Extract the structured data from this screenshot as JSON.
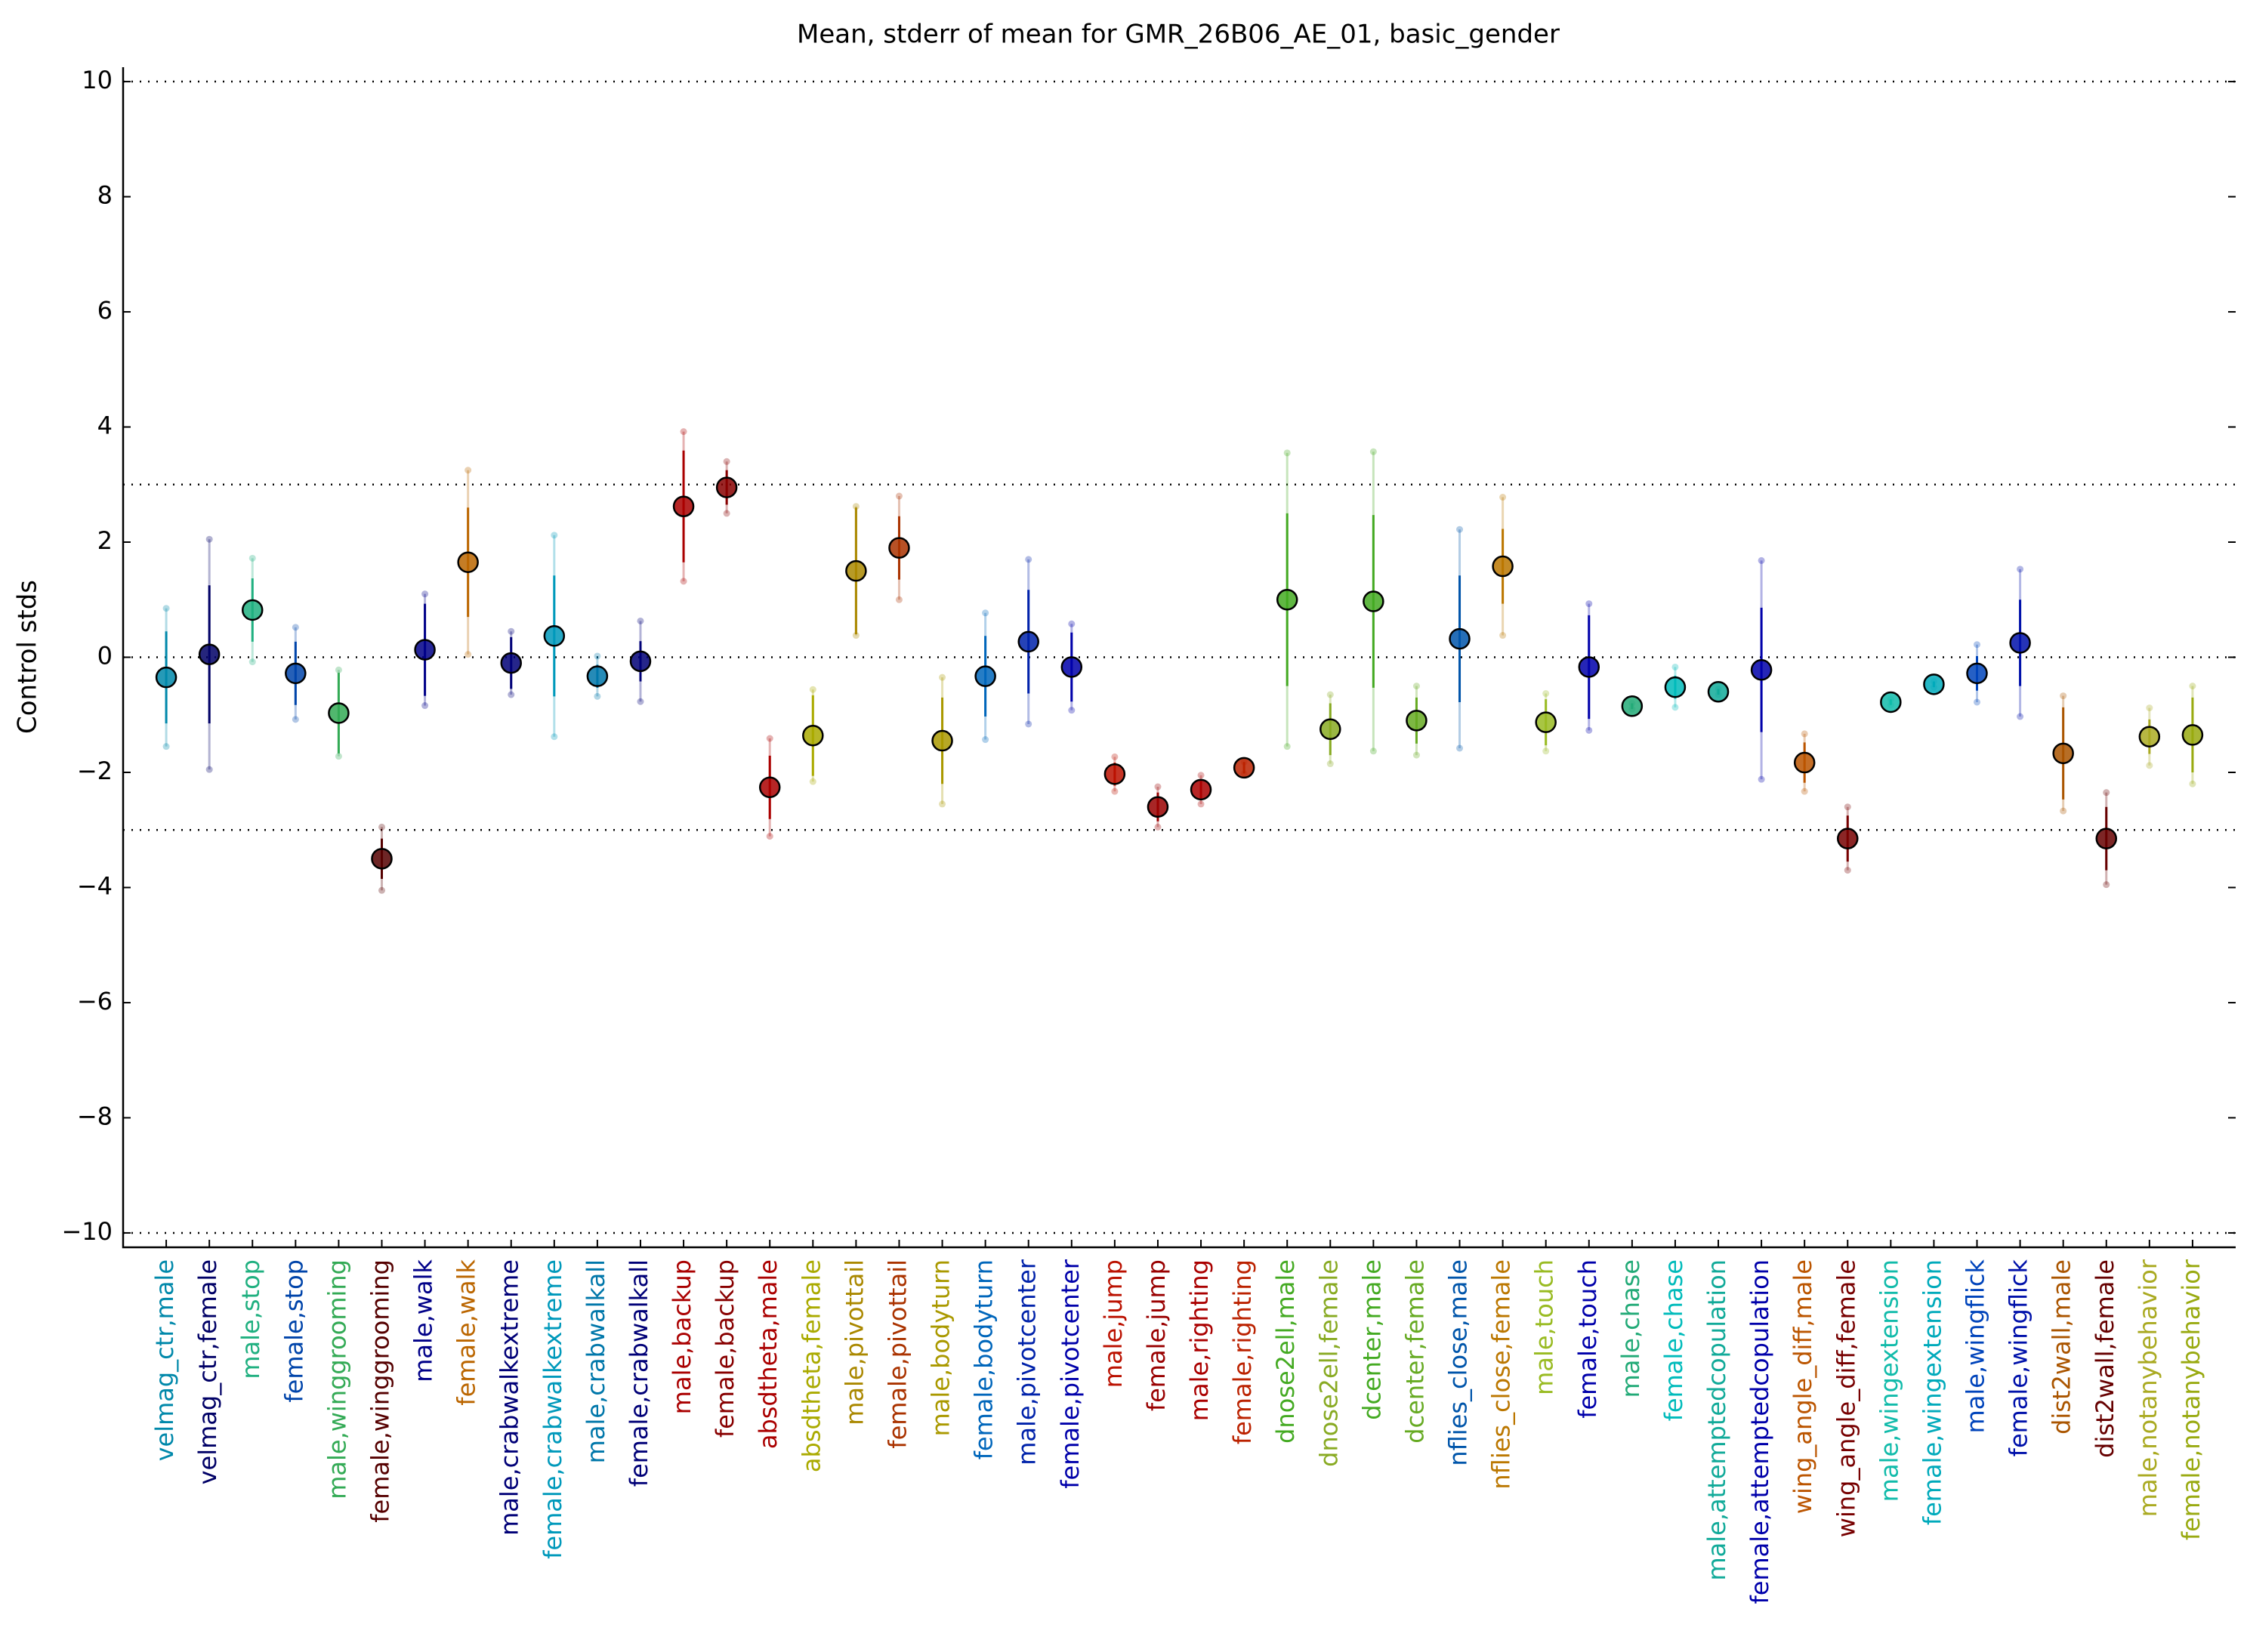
{
  "chart_data": {
    "type": "errorbar",
    "title": "Mean, stderr of mean for GMR_26B06_AE_01, basic_gender",
    "y_label": "Control stds",
    "categories": [
      "velmag_ctr,male",
      "velmag_ctr,female",
      "male,stop",
      "female,stop",
      "male,winggrooming",
      "female,winggrooming",
      "male,walk",
      "female,walk",
      "male,crabwalkextreme",
      "female,crabwalkextreme",
      "male,crabwalkall",
      "female,crabwalkall",
      "male,backup",
      "female,backup",
      "absdtheta,male",
      "absdtheta,female",
      "male,pivottail",
      "female,pivottail",
      "male,bodyturn",
      "female,bodyturn",
      "male,pivotcenter",
      "female,pivotcenter",
      "male,jump",
      "female,jump",
      "male,righting",
      "female,righting",
      "dnose2ell,male",
      "dnose2ell,female",
      "dcenter,male",
      "dcenter,female",
      "nflies_close,male",
      "nflies_close,female",
      "male,touch",
      "female,touch",
      "male,chase",
      "female,chase",
      "male,attemptedcopulation",
      "female,attemptedcopulation",
      "wing_angle_diff,male",
      "wing_angle_diff,female",
      "male,wingextension",
      "female,wingextension",
      "male,wingflick",
      "female,wingflick",
      "dist2wall,male",
      "dist2wall,female",
      "male,notanybehavior",
      "female,notanybehavior"
    ],
    "values": [
      -0.35,
      0.05,
      0.82,
      -0.28,
      -0.97,
      -3.5,
      0.13,
      1.65,
      -0.1,
      0.37,
      -0.33,
      -0.07,
      2.62,
      2.95,
      -2.26,
      -1.36,
      1.5,
      1.9,
      -1.45,
      -0.33,
      0.27,
      -0.17,
      -2.03,
      -2.6,
      -2.3,
      -1.92,
      1.0,
      -1.25,
      0.97,
      -1.1,
      0.32,
      1.58,
      -1.13,
      -0.17,
      -0.85,
      -0.52,
      -0.6,
      -0.22,
      -1.83,
      -3.15,
      -0.78,
      -0.47,
      -0.28,
      0.25,
      -1.67,
      -3.15,
      -1.38,
      -1.35
    ],
    "stderr": [
      0.8,
      1.2,
      0.55,
      0.55,
      0.7,
      0.35,
      0.8,
      0.95,
      0.45,
      1.05,
      0.2,
      0.35,
      0.97,
      0.3,
      0.55,
      0.7,
      1.1,
      0.55,
      0.75,
      0.7,
      0.9,
      0.6,
      0.2,
      0.25,
      0.15,
      0.1,
      1.5,
      0.45,
      1.5,
      0.4,
      1.1,
      0.65,
      0.4,
      0.9,
      0.05,
      0.2,
      0.05,
      1.08,
      0.35,
      0.4,
      0.05,
      0.05,
      0.3,
      0.75,
      0.8,
      0.55,
      0.3,
      0.65
    ],
    "std": [
      1.2,
      2.0,
      0.9,
      0.8,
      0.75,
      0.55,
      0.97,
      1.6,
      0.55,
      1.75,
      0.35,
      0.7,
      1.3,
      0.45,
      0.85,
      0.8,
      1.12,
      0.9,
      1.1,
      1.1,
      1.43,
      0.75,
      0.3,
      0.35,
      0.25,
      0.1,
      2.55,
      0.6,
      2.6,
      0.6,
      1.9,
      1.2,
      0.5,
      1.1,
      0.05,
      0.35,
      0.05,
      1.9,
      0.5,
      0.55,
      0.05,
      0.05,
      0.5,
      1.28,
      1.0,
      0.8,
      0.5,
      0.85
    ],
    "colors": [
      "#0088aa",
      "#000066",
      "#20b080",
      "#0044aa",
      "#33aa55",
      "#550000",
      "#000088",
      "#bb6600",
      "#000077",
      "#0099bb",
      "#0077aa",
      "#000077",
      "#aa0000",
      "#880000",
      "#aa0000",
      "#aaaa00",
      "#aa8800",
      "#aa3300",
      "#aa9900",
      "#0066bb",
      "#0022aa",
      "#0000aa",
      "#bb1100",
      "#990000",
      "#aa0000",
      "#bb2200",
      "#44aa22",
      "#88aa22",
      "#44aa22",
      "#66aa22",
      "#0055aa",
      "#bb7700",
      "#99bb22",
      "#0000aa",
      "#22aa77",
      "#00bbbb",
      "#11aa99",
      "#0000aa",
      "#bb5500",
      "#770000",
      "#11bbaa",
      "#00aabb",
      "#0044bb",
      "#0011aa",
      "#aa5500",
      "#660000",
      "#aaaa22",
      "#99aa11"
    ],
    "ylim": [
      -10.25,
      10.25
    ],
    "yticks": [
      {
        "value": -10,
        "label": "−10"
      },
      {
        "value": -8,
        "label": "−8"
      },
      {
        "value": -6,
        "label": "−6"
      },
      {
        "value": -4,
        "label": "−4"
      },
      {
        "value": -2,
        "label": "−2"
      },
      0,
      2,
      4,
      6,
      8,
      10
    ],
    "hlines": [
      10,
      3,
      0,
      -3,
      -10
    ]
  }
}
